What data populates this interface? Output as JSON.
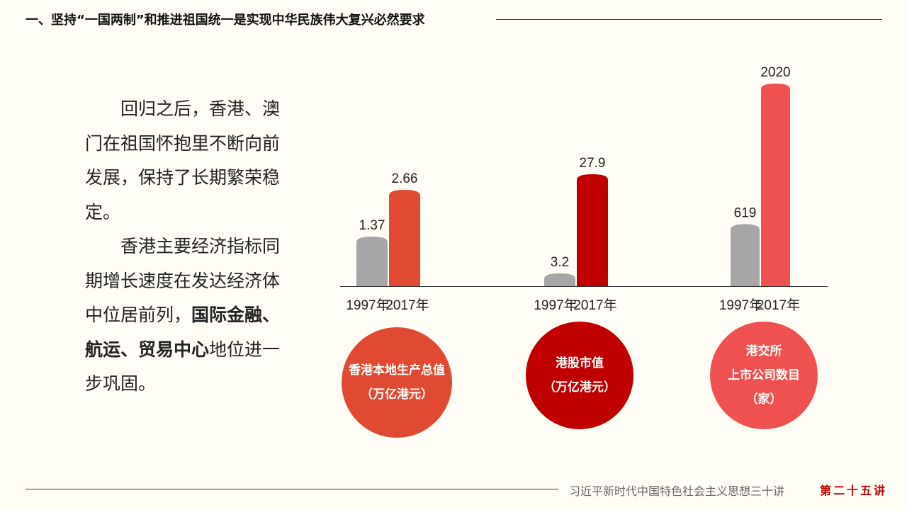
{
  "header": {
    "title": "一、坚持“一国两制”和推进祖国统一是实现中华民族伟大复兴必然要求"
  },
  "body": {
    "para1": "回归之后，香港、澳门在祖国怀抱里不断向前发展，保持了长期繁荣稳定。",
    "para2_pre": "香港主要经济指标同期增长速度在发达经济体中位居前列，",
    "para2_bold": "国际金融、航运、贸易中心",
    "para2_post": "地位进一步巩固。"
  },
  "footer": {
    "series": "习近平新时代中国特色社会主义思想三十讲",
    "lecture": "第二十五讲"
  },
  "colors": {
    "gray": "#a6a6a6",
    "red1": "#e04a32",
    "red2": "#c00000",
    "red3": "#ef5050"
  },
  "chart_data": [
    {
      "type": "bar",
      "categories": [
        "1997年",
        "2017年"
      ],
      "values": [
        1.37,
        2.66
      ],
      "labels": [
        "1.37",
        "2.66"
      ],
      "title_lines": [
        "香港本地生产总值",
        "（万亿港元）"
      ],
      "colors": [
        "#a6a6a6",
        "#e04a32"
      ]
    },
    {
      "type": "bar",
      "categories": [
        "1997年",
        "2017年"
      ],
      "values": [
        3.2,
        27.9
      ],
      "labels": [
        "3.2",
        "27.9"
      ],
      "title_lines": [
        "港股市值",
        "（万亿港元）"
      ],
      "colors": [
        "#a6a6a6",
        "#c00000"
      ]
    },
    {
      "type": "bar",
      "categories": [
        "1997年",
        "2017年"
      ],
      "values": [
        619,
        2020
      ],
      "labels": [
        "619",
        "2020"
      ],
      "title_lines": [
        "港交所",
        "上市公司数目",
        "（家）"
      ],
      "colors": [
        "#a6a6a6",
        "#ef5050"
      ]
    }
  ]
}
